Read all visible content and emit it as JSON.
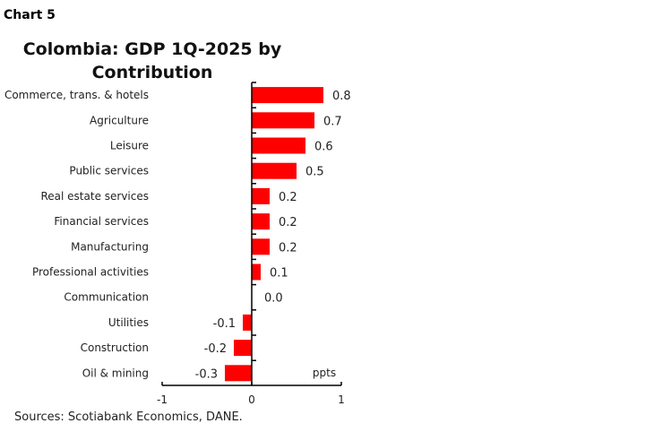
{
  "header": {
    "chart_number": "Chart 5"
  },
  "footer": {
    "source": "Sources: Scotiabank Economics, DANE."
  },
  "chart_data": {
    "type": "bar",
    "orientation": "horizontal",
    "title_lines": [
      "Colombia: GDP 1Q-2025 by",
      "Contribution"
    ],
    "categories": [
      "Commerce, trans. & hotels",
      "Agriculture",
      "Leisure",
      "Public services",
      "Real estate services",
      "Financial services",
      "Manufacturing",
      "Professional activities",
      "Communication",
      "Utilities",
      "Construction",
      "Oil & mining"
    ],
    "values": [
      0.8,
      0.7,
      0.6,
      0.5,
      0.2,
      0.2,
      0.2,
      0.1,
      0.0,
      -0.1,
      -0.2,
      -0.3
    ],
    "value_labels": [
      "0.8",
      "0.7",
      "0.6",
      "0.5",
      "0.2",
      "0.2",
      "0.2",
      "0.1",
      "0.0",
      "-0.1",
      "-0.2",
      "-0.3"
    ],
    "unit_label": "ppts",
    "xlim": [
      -1,
      1
    ],
    "xticks": [
      "-1",
      "0",
      "1"
    ],
    "grid": false,
    "bar_color": "#ff0000"
  }
}
